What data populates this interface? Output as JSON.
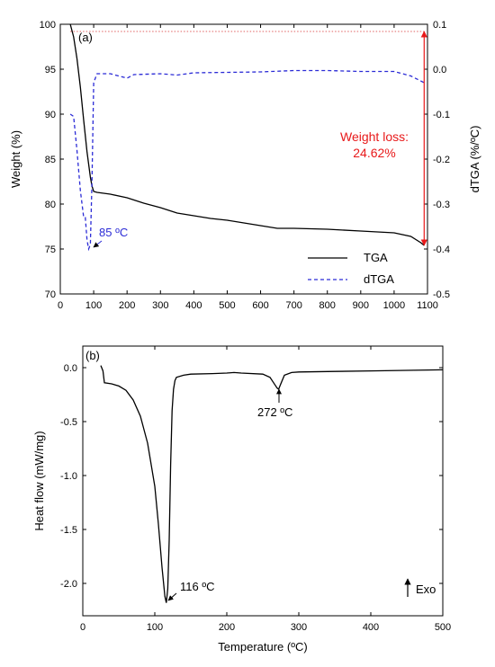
{
  "chart_data": [
    {
      "type": "line",
      "panel_label": "(a)",
      "xlabel": "",
      "ylabel": "Weight (%)",
      "y2label": "dTGA (%/ºC)",
      "xlim": [
        0,
        1100
      ],
      "ylim": [
        70,
        100
      ],
      "y2lim": [
        -0.5,
        0.1
      ],
      "x_ticks": [
        0,
        100,
        200,
        300,
        400,
        500,
        600,
        700,
        800,
        900,
        1000,
        1100
      ],
      "y_ticks": [
        70,
        75,
        80,
        85,
        90,
        95,
        100
      ],
      "y2_ticks": [
        -0.5,
        -0.4,
        -0.3,
        -0.2,
        -0.1,
        0.0,
        0.1
      ],
      "y2_tick_labels": [
        "-0.5",
        "-0.4",
        "-0.3",
        "-0.2",
        "-0.1",
        "0.0",
        "0.1"
      ],
      "legend": {
        "placement": "bottom-right",
        "entries": [
          "TGA",
          "dTGA"
        ]
      },
      "series": [
        {
          "name": "TGA",
          "axis": "left",
          "color": "#000000",
          "style": "solid",
          "x": [
            30,
            40,
            50,
            60,
            70,
            80,
            90,
            95,
            100,
            110,
            150,
            200,
            250,
            300,
            350,
            400,
            450,
            500,
            550,
            600,
            650,
            700,
            800,
            900,
            1000,
            1050,
            1080,
            1090
          ],
          "y": [
            100,
            98.6,
            96.2,
            93.0,
            89.3,
            85.8,
            83.0,
            82.0,
            81.4,
            81.3,
            81.1,
            80.7,
            80.1,
            79.6,
            79.0,
            78.7,
            78.4,
            78.2,
            77.9,
            77.6,
            77.3,
            77.3,
            77.2,
            77.0,
            76.8,
            76.4,
            75.7,
            75.4
          ]
        },
        {
          "name": "dTGA",
          "axis": "right",
          "color": "#2b2bd6",
          "style": "dashed",
          "x": [
            30,
            40,
            50,
            60,
            70,
            75,
            80,
            85,
            90,
            95,
            100,
            110,
            150,
            200,
            220,
            300,
            350,
            400,
            500,
            600,
            700,
            800,
            900,
            1000,
            1050,
            1090
          ],
          "y": [
            -0.1,
            -0.105,
            -0.18,
            -0.27,
            -0.33,
            -0.33,
            -0.38,
            -0.4,
            -0.39,
            -0.25,
            -0.03,
            -0.01,
            -0.01,
            -0.02,
            -0.012,
            -0.01,
            -0.013,
            -0.008,
            -0.007,
            -0.006,
            -0.003,
            -0.003,
            -0.005,
            -0.005,
            -0.015,
            -0.03
          ]
        }
      ],
      "reference_line": {
        "y": 99.2,
        "color": "#e06060",
        "style": "dotted"
      },
      "annotations": [
        {
          "text": "85 ºC",
          "x": 85,
          "y": -0.4,
          "axis": "right",
          "color": "#2b2bd6"
        },
        {
          "text": "Weight loss:",
          "color": "#e8191a"
        },
        {
          "text": "24.62%",
          "color": "#e8191a"
        }
      ],
      "double_arrow": {
        "x": 1090,
        "y_top": 99.2,
        "y_bottom": 75.4,
        "color": "#e8191a"
      }
    },
    {
      "type": "line",
      "panel_label": "(b)",
      "xlabel": "Temperature (ºC)",
      "ylabel": "Heat flow (mW/mg)",
      "xlim": [
        0,
        500
      ],
      "ylim": [
        -2.3,
        0.2
      ],
      "x_ticks": [
        0,
        100,
        200,
        300,
        400,
        500
      ],
      "y_ticks": [
        -2.0,
        -1.5,
        -1.0,
        -0.5,
        0.0
      ],
      "y_tick_labels": [
        "-2.0",
        "-1.5",
        "-1.0",
        "-0.5",
        "0.0"
      ],
      "series": [
        {
          "name": "",
          "color": "#000000",
          "style": "solid",
          "x": [
            25,
            28,
            30,
            40,
            50,
            60,
            70,
            80,
            90,
            100,
            105,
            110,
            114,
            116,
            118,
            120,
            122,
            124,
            126,
            128,
            130,
            140,
            150,
            180,
            200,
            210,
            220,
            250,
            260,
            265,
            270,
            272,
            275,
            280,
            290,
            300,
            350,
            400,
            450,
            500
          ],
          "y": [
            0.02,
            -0.03,
            -0.14,
            -0.15,
            -0.17,
            -0.21,
            -0.3,
            -0.45,
            -0.7,
            -1.1,
            -1.45,
            -1.85,
            -2.12,
            -2.18,
            -2.05,
            -1.6,
            -0.9,
            -0.4,
            -0.2,
            -0.12,
            -0.09,
            -0.07,
            -0.06,
            -0.055,
            -0.05,
            -0.045,
            -0.05,
            -0.06,
            -0.09,
            -0.14,
            -0.19,
            -0.2,
            -0.15,
            -0.07,
            -0.045,
            -0.04,
            -0.035,
            -0.03,
            -0.025,
            -0.02
          ]
        }
      ],
      "annotations": [
        {
          "text": "116 ºC",
          "x": 116,
          "y": -2.18
        },
        {
          "text": "272 ºC",
          "x": 272,
          "y": -0.2
        },
        {
          "text": "Exo"
        }
      ]
    }
  ]
}
